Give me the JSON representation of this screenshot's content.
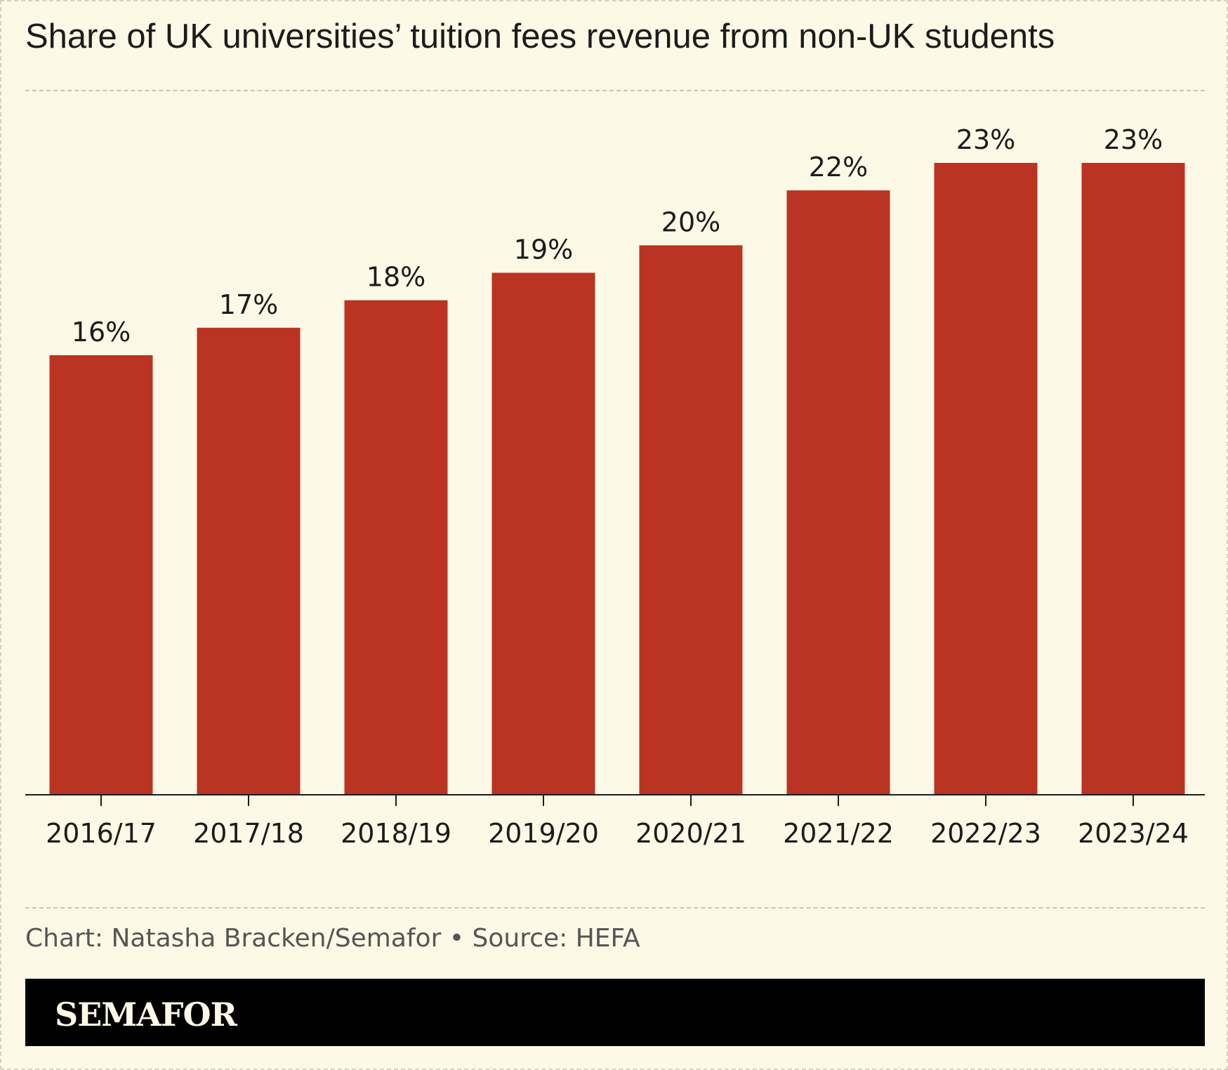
{
  "title": "Share of UK universities’ tuition fees revenue from non-UK students",
  "credit": "Chart: Natasha Bracken/Semafor • Source: HEFA",
  "brand": "SEMAFOR",
  "colors": {
    "background": "#fcf9e6",
    "bar": "#bb3322",
    "text": "#1c1c1c",
    "credit": "#555555",
    "brand_bar": "#000000"
  },
  "chart_data": {
    "type": "bar",
    "categories": [
      "2016/17",
      "2017/18",
      "2018/19",
      "2019/20",
      "2020/21",
      "2021/22",
      "2022/23",
      "2023/24"
    ],
    "values": [
      16,
      17,
      18,
      19,
      20,
      22,
      23,
      23
    ],
    "value_labels": [
      "16%",
      "17%",
      "18%",
      "19%",
      "20%",
      "22%",
      "23%",
      "23%"
    ],
    "title": "Share of UK universities’ tuition fees revenue from non-UK students",
    "ylim": [
      0,
      23
    ],
    "grid": false,
    "legend": "none"
  }
}
